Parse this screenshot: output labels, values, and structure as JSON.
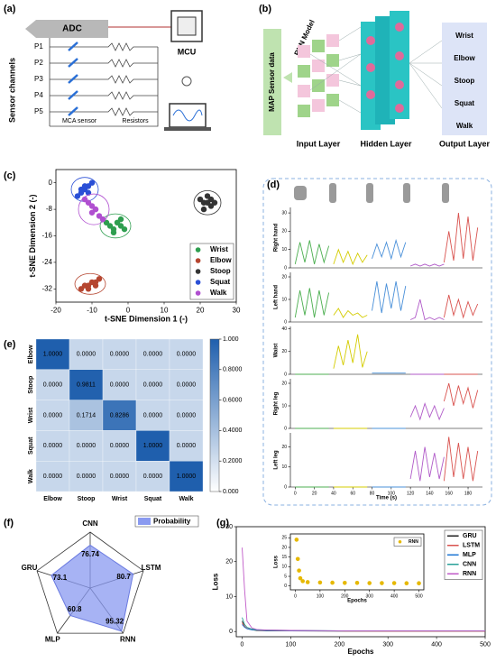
{
  "panel_labels": [
    "(a)",
    "(b)",
    "(c)",
    "(d)",
    "(e)",
    "(f)",
    "(g)"
  ],
  "sensor_diagram": {
    "adc": "ADC",
    "mcu": "MCU",
    "channels_title": "Sensor channels",
    "channels": [
      "P1",
      "P2",
      "P3",
      "P4",
      "P5"
    ],
    "sensor": "MCA sensor",
    "resistors": "Resistors"
  },
  "network_diagram": {
    "input_data": "MAP Sensor data",
    "model": "RNN Model",
    "layers": [
      "Input Layer",
      "Hidden Layer",
      "Output Layer"
    ],
    "outputs": [
      "Wrist",
      "Elbow",
      "Stoop",
      "Squat",
      "Walk"
    ]
  },
  "chart_data": [
    {
      "type": "scatter",
      "xlabel": "t-SNE Dimension 1 (-)",
      "ylabel": "t-SNE Dimension 2 (-)",
      "xlim": [
        -20,
        30
      ],
      "xticks": [
        -20,
        -10,
        0,
        10,
        20,
        30
      ],
      "ylim": [
        -36,
        4
      ],
      "yticks": [
        -32,
        -24,
        -16,
        -8,
        0
      ],
      "ellipses": true,
      "legend": "lower right",
      "series": [
        {
          "name": "Wrist",
          "color": "#2e9e4f",
          "x": [
            -6,
            -5,
            -4,
            -3,
            -2,
            -1,
            -4,
            -2
          ],
          "values": [
            -12,
            -13,
            -14,
            -12,
            -13,
            -14,
            -15,
            -11
          ]
        },
        {
          "name": "Elbow",
          "color": "#b5452f",
          "x": [
            -13,
            -12,
            -11,
            -10,
            -9,
            -8,
            -11,
            -9
          ],
          "values": [
            -32,
            -31,
            -31,
            -30,
            -30,
            -29,
            -32,
            -31
          ]
        },
        {
          "name": "Stoop",
          "color": "#333333",
          "x": [
            20,
            21,
            22,
            23,
            24,
            21,
            23,
            22
          ],
          "values": [
            -5,
            -6,
            -4,
            -7,
            -6,
            -8,
            -5,
            -6
          ]
        },
        {
          "name": "Squat",
          "color": "#2a4fd6",
          "x": [
            -14,
            -13,
            -12,
            -11,
            -10,
            -12,
            -11,
            -13
          ],
          "values": [
            -4,
            -3,
            -2,
            -1,
            0,
            -1,
            -3,
            -2
          ]
        },
        {
          "name": "Walk",
          "color": "#b04fd0",
          "x": [
            -12,
            -11,
            -10,
            -9,
            -8,
            -7,
            -10,
            -9
          ],
          "values": [
            -5,
            -6,
            -7,
            -8,
            -10,
            -11,
            -9,
            -8
          ]
        }
      ]
    },
    {
      "type": "line",
      "ylabel": "Right hand",
      "xlim": [
        -5,
        195
      ],
      "ylim": [
        0,
        33
      ],
      "yticks": [
        0,
        10,
        20,
        30
      ],
      "series": [
        {
          "color": "#4caf50",
          "x": [
            0,
            5,
            10,
            15,
            20,
            25,
            30,
            35
          ],
          "values": [
            2,
            14,
            3,
            15,
            2,
            13,
            3,
            12
          ]
        },
        {
          "color": "#d4cc00",
          "x": [
            40,
            45,
            50,
            55,
            60,
            65,
            70,
            75
          ],
          "values": [
            2,
            10,
            3,
            9,
            2,
            8,
            3,
            7
          ]
        },
        {
          "color": "#4a90d9",
          "x": [
            80,
            85,
            90,
            95,
            100,
            105,
            110,
            115
          ],
          "values": [
            5,
            13,
            6,
            14,
            5,
            15,
            6,
            14
          ]
        },
        {
          "color": "#b05ac8",
          "x": [
            120,
            125,
            130,
            135,
            140,
            145,
            150,
            155
          ],
          "values": [
            1,
            2,
            1,
            2,
            1,
            2,
            1,
            2
          ]
        },
        {
          "color": "#d9534f",
          "x": [
            155,
            160,
            165,
            170,
            175,
            180,
            185,
            190
          ],
          "values": [
            3,
            20,
            4,
            30,
            5,
            28,
            4,
            22
          ]
        }
      ]
    },
    {
      "type": "line",
      "ylabel": "Left hand",
      "xlim": [
        -5,
        195
      ],
      "ylim": [
        0,
        22
      ],
      "yticks": [
        0,
        10,
        20
      ],
      "series": [
        {
          "color": "#4caf50",
          "x": [
            0,
            5,
            10,
            15,
            20,
            25,
            30,
            35
          ],
          "values": [
            2,
            14,
            3,
            15,
            2,
            14,
            3,
            13
          ]
        },
        {
          "color": "#d4cc00",
          "x": [
            40,
            45,
            50,
            55,
            60,
            65,
            70,
            75
          ],
          "values": [
            3,
            6,
            2,
            5,
            3,
            4,
            2,
            3
          ]
        },
        {
          "color": "#4a90d9",
          "x": [
            80,
            85,
            90,
            95,
            100,
            105,
            110,
            115
          ],
          "values": [
            5,
            18,
            4,
            17,
            6,
            18,
            5,
            16
          ]
        },
        {
          "color": "#b05ac8",
          "x": [
            120,
            125,
            130,
            135,
            140,
            145,
            150,
            155
          ],
          "values": [
            1,
            2,
            10,
            1,
            2,
            1,
            2,
            1
          ]
        },
        {
          "color": "#d9534f",
          "x": [
            155,
            160,
            165,
            170,
            175,
            180,
            185,
            190
          ],
          "values": [
            2,
            12,
            3,
            10,
            2,
            9,
            3,
            8
          ]
        }
      ]
    },
    {
      "type": "line",
      "ylabel": "Waist",
      "xlim": [
        -5,
        195
      ],
      "ylim": [
        0,
        42
      ],
      "yticks": [
        0,
        20,
        40
      ],
      "series": [
        {
          "color": "#4caf50",
          "x": [
            0,
            5,
            10,
            15,
            20,
            25,
            30,
            35
          ],
          "values": [
            0,
            0,
            0,
            0,
            0,
            0,
            0,
            0
          ]
        },
        {
          "color": "#d4cc00",
          "x": [
            40,
            45,
            50,
            55,
            60,
            65,
            70,
            75
          ],
          "values": [
            5,
            25,
            8,
            30,
            10,
            35,
            6,
            20
          ]
        },
        {
          "color": "#4a90d9",
          "x": [
            80,
            85,
            90,
            95,
            100,
            105,
            110,
            115
          ],
          "values": [
            1,
            1,
            1,
            1,
            1,
            1,
            1,
            1
          ]
        },
        {
          "color": "#b05ac8",
          "x": [
            120,
            125,
            130,
            135,
            140,
            145,
            150,
            155
          ],
          "values": [
            0,
            0,
            0,
            0,
            0,
            0,
            0,
            0
          ]
        },
        {
          "color": "#d9534f",
          "x": [
            155,
            160,
            165,
            170,
            175,
            180,
            185,
            190
          ],
          "values": [
            0,
            0,
            0,
            0,
            0,
            0,
            0,
            0
          ]
        }
      ]
    },
    {
      "type": "line",
      "ylabel": "Right leg",
      "xlim": [
        -5,
        195
      ],
      "ylim": [
        0,
        22
      ],
      "yticks": [
        0,
        10,
        20
      ],
      "series": [
        {
          "color": "#4caf50",
          "x": [
            0,
            5,
            10,
            15,
            20,
            25,
            30,
            35
          ],
          "values": [
            0,
            0,
            0,
            0,
            0,
            0,
            0,
            0
          ]
        },
        {
          "color": "#d4cc00",
          "x": [
            40,
            45,
            50,
            55,
            60,
            65,
            70,
            75
          ],
          "values": [
            0,
            0,
            0,
            0,
            0,
            0,
            0,
            0
          ]
        },
        {
          "color": "#4a90d9",
          "x": [
            80,
            85,
            90,
            95,
            100,
            105,
            110,
            115
          ],
          "values": [
            0,
            0,
            0,
            0,
            0,
            0,
            0,
            0
          ]
        },
        {
          "color": "#b05ac8",
          "x": [
            120,
            125,
            130,
            135,
            140,
            145,
            150,
            155
          ],
          "values": [
            5,
            10,
            4,
            11,
            5,
            10,
            4,
            9
          ]
        },
        {
          "color": "#d9534f",
          "x": [
            155,
            160,
            165,
            170,
            175,
            180,
            185,
            190
          ],
          "values": [
            12,
            20,
            10,
            19,
            11,
            18,
            9,
            17
          ]
        }
      ]
    },
    {
      "type": "line",
      "ylabel": "Left leg",
      "xlabel": "Time (s)",
      "xlim": [
        -5,
        195
      ],
      "xticks": [
        0,
        20,
        40,
        60,
        80,
        100,
        120,
        140,
        160,
        180
      ],
      "ylim": [
        0,
        27
      ],
      "yticks": [
        0,
        10,
        20
      ],
      "series": [
        {
          "color": "#4caf50",
          "x": [
            0,
            5,
            10,
            15,
            20,
            25,
            30,
            35
          ],
          "values": [
            0,
            0,
            0,
            0,
            0,
            0,
            0,
            0
          ]
        },
        {
          "color": "#d4cc00",
          "x": [
            40,
            45,
            50,
            55,
            60,
            65,
            70,
            75
          ],
          "values": [
            0,
            0,
            0,
            0,
            0,
            0,
            0,
            0
          ]
        },
        {
          "color": "#4a90d9",
          "x": [
            80,
            85,
            90,
            95,
            100,
            105,
            110,
            115
          ],
          "values": [
            0,
            0,
            0,
            0,
            0,
            0,
            0,
            0
          ]
        },
        {
          "color": "#b05ac8",
          "x": [
            120,
            125,
            130,
            135,
            140,
            145,
            150,
            155
          ],
          "values": [
            4,
            18,
            3,
            20,
            5,
            17,
            4,
            15
          ]
        },
        {
          "color": "#d9534f",
          "x": [
            155,
            160,
            165,
            170,
            175,
            180,
            185,
            190
          ],
          "values": [
            3,
            25,
            5,
            22,
            4,
            20,
            3,
            18
          ]
        }
      ]
    },
    {
      "type": "heatmap",
      "rows": [
        "Elbow",
        "Stoop",
        "Wrist",
        "Squat",
        "Walk"
      ],
      "categories": [
        "Elbow",
        "Stoop",
        "Wrist",
        "Squat",
        "Walk"
      ],
      "values": [
        [
          1,
          0,
          0,
          0,
          0
        ],
        [
          0,
          0.9811,
          0,
          0,
          0
        ],
        [
          0,
          0.1714,
          0.8286,
          0,
          0
        ],
        [
          0,
          0,
          0,
          1,
          0
        ],
        [
          0,
          0,
          0,
          0,
          1
        ]
      ],
      "value_labels": [
        [
          "1.0000",
          "0.0000",
          "0.0000",
          "0.0000",
          "0.0000"
        ],
        [
          "0.0000",
          "0.9811",
          "0.0000",
          "0.0000",
          "0.0000"
        ],
        [
          "0.0000",
          "0.1714",
          "0.8286",
          "0.0000",
          "0.0000"
        ],
        [
          "0.0000",
          "0.0000",
          "0.0000",
          "1.0000",
          "0.0000"
        ],
        [
          "0.0000",
          "0.0000",
          "0.0000",
          "0.0000",
          "1.0000"
        ]
      ],
      "clim": [
        0,
        1
      ],
      "colors": [
        "#ffffff",
        "#1f5fad"
      ],
      "cticks": [
        {
          "value": 0,
          "label": "0.000"
        },
        {
          "value": 0.2,
          "label": "0.2000"
        },
        {
          "value": 0.4,
          "label": "0.4000"
        },
        {
          "value": 0.6,
          "label": "0.6000"
        },
        {
          "value": 0.8,
          "label": "0.8000"
        },
        {
          "value": 1,
          "label": "1.000"
        }
      ]
    },
    {
      "type": "radar",
      "categories": [
        "CNN",
        "LSTM",
        "RNN",
        "MLP",
        "GRU"
      ],
      "values": [
        76.74,
        80.7,
        95.32,
        60.8,
        73.1
      ],
      "value_colors": [
        "#5a6fd8",
        "#5a6fd8",
        "#d62728",
        "#5a6fd8",
        "#5a6fd8"
      ],
      "rlim": [
        0,
        100
      ],
      "color": "#8a9af0",
      "series_name": "Probability",
      "legend": "upper right"
    },
    {
      "type": "line",
      "xlabel": "Epochs",
      "ylabel": "Loss",
      "xlim": [
        -12,
        500
      ],
      "xticks": [
        0,
        100,
        200,
        300,
        400,
        500
      ],
      "ylim": [
        -1.5,
        30
      ],
      "yticks": [
        0,
        10,
        20,
        30
      ],
      "x": [
        0,
        5,
        10,
        20,
        30,
        50,
        100,
        200,
        300,
        400,
        500
      ],
      "legend": "upper right",
      "series": [
        {
          "name": "GRU",
          "color": "#222222",
          "values": [
            3,
            1.5,
            0.8,
            0.5,
            0.3,
            0.2,
            0.15,
            0.1,
            0.1,
            0.1,
            0.1
          ]
        },
        {
          "name": "LSTM",
          "color": "#d9534f",
          "values": [
            2.5,
            1.4,
            0.9,
            0.6,
            0.4,
            0.3,
            0.2,
            0.15,
            0.1,
            0.1,
            0.1
          ]
        },
        {
          "name": "MLP",
          "color": "#1f77d4",
          "values": [
            2,
            1.2,
            0.8,
            0.5,
            0.4,
            0.3,
            0.2,
            0.2,
            0.2,
            0.2,
            0.2
          ]
        },
        {
          "name": "CNN",
          "color": "#2aa198",
          "values": [
            4,
            2,
            1.2,
            0.7,
            0.5,
            0.4,
            0.3,
            0.2,
            0.2,
            0.2,
            0.2
          ]
        },
        {
          "name": "RNN",
          "color": "#c05ac8",
          "values": [
            24,
            12,
            3,
            1,
            0.6,
            0.4,
            0.3,
            0.2,
            0.2,
            0.2,
            0.2
          ]
        }
      ]
    },
    {
      "type": "scatter",
      "xlabel": "Epochs",
      "ylabel": "Loss",
      "xlim": [
        -20,
        520
      ],
      "xticks": [
        0,
        100,
        200,
        300,
        400,
        500
      ],
      "ylim": [
        -2,
        27
      ],
      "yticks": [
        0,
        5,
        10,
        15,
        20,
        25
      ],
      "legend": "upper right",
      "series": [
        {
          "name": "RNN",
          "color": "#e6b800",
          "x": [
            5,
            10,
            15,
            20,
            30,
            50,
            100,
            150,
            200,
            250,
            300,
            350,
            400,
            450,
            500
          ],
          "values": [
            24,
            14,
            8,
            4,
            2.5,
            2,
            1.8,
            1.7,
            1.6,
            1.6,
            1.5,
            1.5,
            1.5,
            1.4,
            1.4
          ]
        }
      ]
    }
  ]
}
